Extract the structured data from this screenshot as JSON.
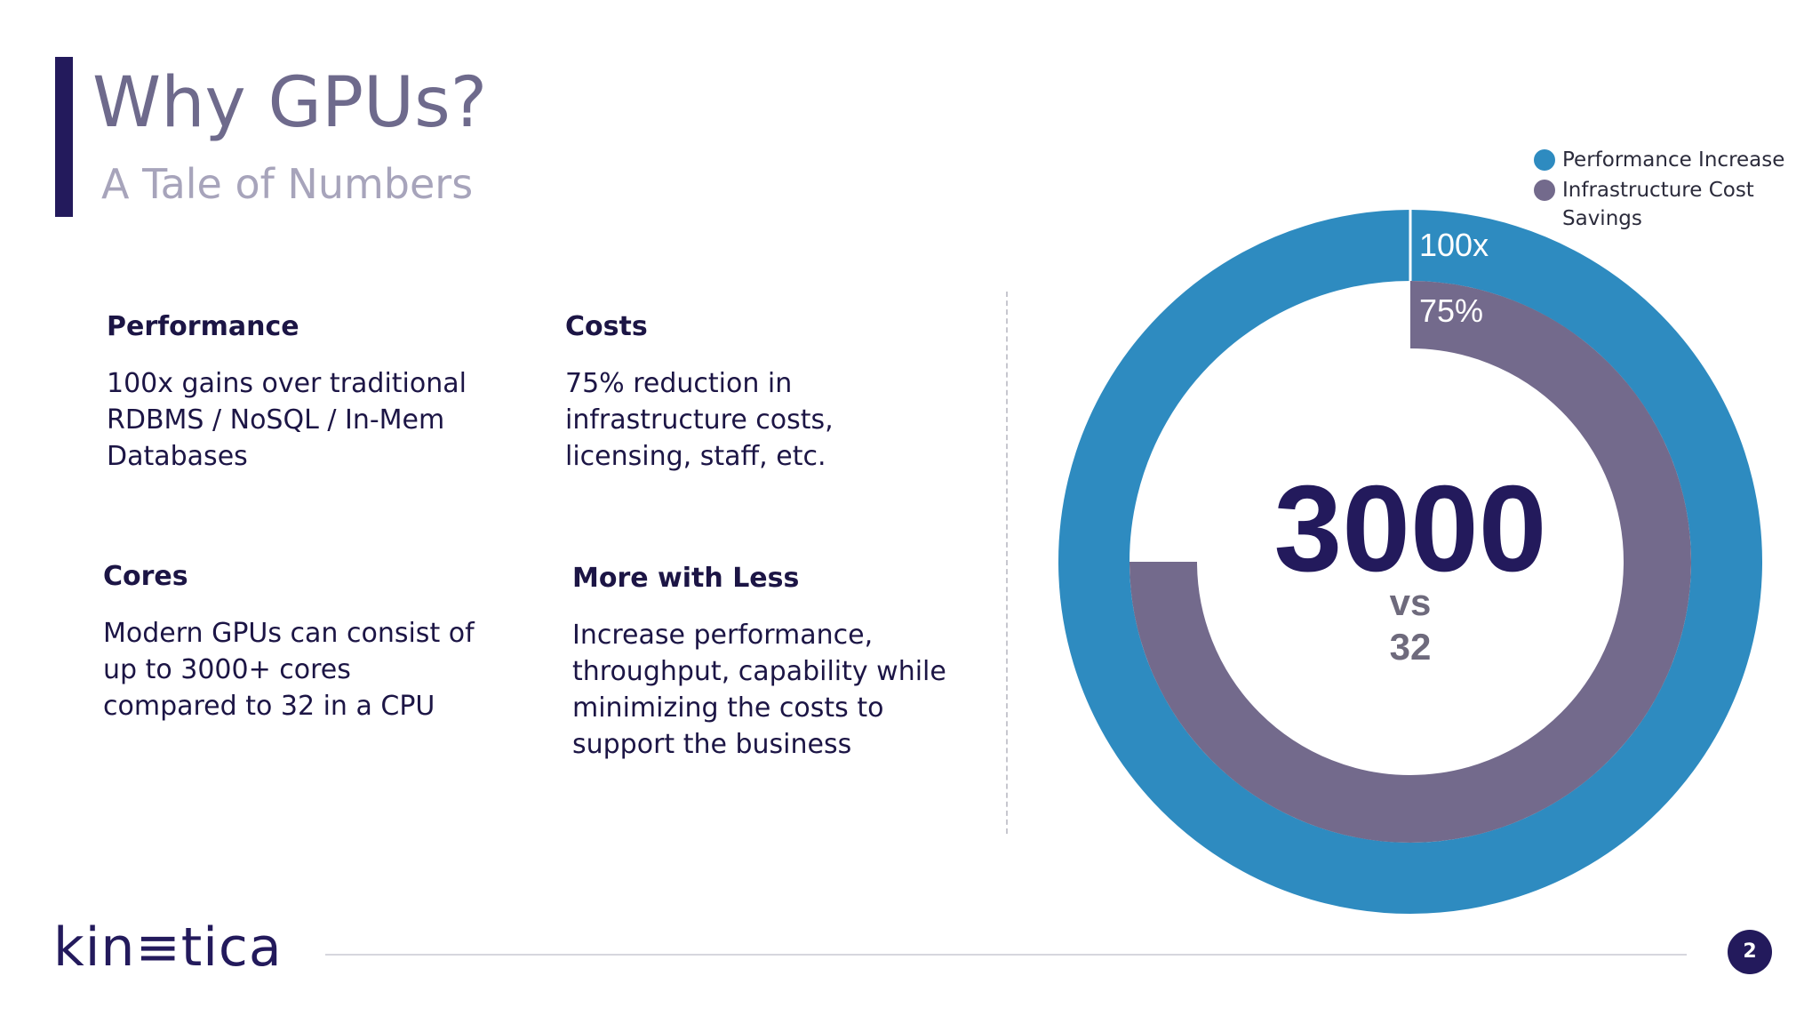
{
  "slide": {
    "title": "Why GPUs?",
    "subtitle": "A Tale of Numbers",
    "page_number": "2",
    "logo_text": "kin≡tica"
  },
  "blocks": [
    {
      "heading": "Performance",
      "body": "100x gains over traditional RDBMS / NoSQL / In-Mem Databases"
    },
    {
      "heading": "Costs",
      "body": "75% reduction in infrastructure costs, licensing, staff, etc."
    },
    {
      "heading": "Cores",
      "body": "Modern GPUs can consist of up to 3000+ cores compared to 32 in a CPU"
    },
    {
      "heading": "More with Less",
      "body": "Increase performance, throughput, capability while minimizing the costs to support the business"
    }
  ],
  "chart_data": {
    "type": "donut",
    "series": [
      {
        "name": "Performance Increase",
        "value_fraction": 1.0,
        "label": "100x",
        "color": "#2e8bc0"
      },
      {
        "name": "Infrastructure Cost Savings",
        "value_fraction": 0.75,
        "label": "75%",
        "color": "#736a8c"
      }
    ],
    "center_text": {
      "big": "3000",
      "vs": "vs",
      "small": "32"
    },
    "legend_position": "top-right"
  },
  "colors": {
    "brand_dark": "#231a5c",
    "outer_ring": "#2e8bc0",
    "inner_ring": "#736a8c"
  }
}
